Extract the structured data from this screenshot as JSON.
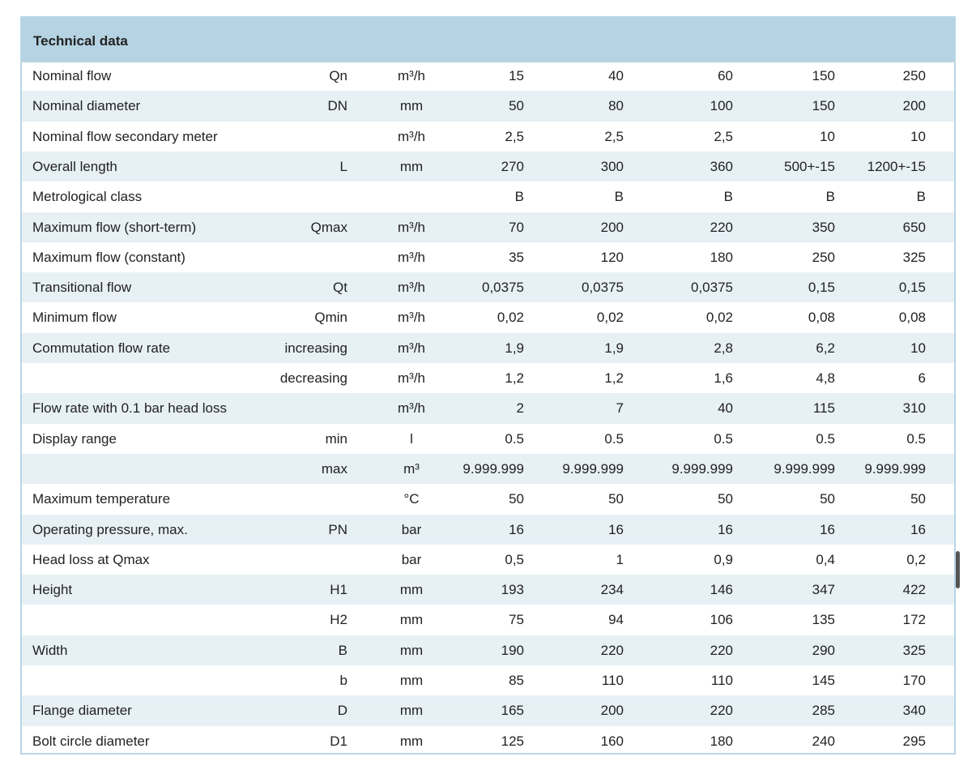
{
  "table": {
    "title": "Technical data",
    "rows": [
      [
        "Nominal flow",
        "Qn",
        "m³/h",
        "15",
        "40",
        "60",
        "150",
        "250"
      ],
      [
        "Nominal diameter",
        "DN",
        "mm",
        "50",
        "80",
        "100",
        "150",
        "200"
      ],
      [
        "Nominal flow secondary meter",
        null,
        "m³/h",
        "2,5",
        "2,5",
        "2,5",
        "10",
        "10"
      ],
      [
        "Overall length",
        "L",
        "mm",
        "270",
        "300",
        "360",
        "500+-15",
        "1200+-15"
      ],
      [
        "Metrological class",
        null,
        null,
        "B",
        "B",
        "B",
        "B",
        "B"
      ],
      [
        "Maximum flow (short-term)",
        "Qmax",
        "m³/h",
        "70",
        "200",
        "220",
        "350",
        "650"
      ],
      [
        "Maximum flow (constant)",
        null,
        "m³/h",
        "35",
        "120",
        "180",
        "250",
        "325"
      ],
      [
        "Transitional flow",
        "Qt",
        "m³/h",
        "0,0375",
        "0,0375",
        "0,0375",
        "0,15",
        "0,15"
      ],
      [
        "Minimum flow",
        "Qmin",
        "m³/h",
        "0,02",
        "0,02",
        "0,02",
        "0,08",
        "0,08"
      ],
      [
        "Commutation flow rate",
        "increasing",
        "m³/h",
        "1,9",
        "1,9",
        "2,8",
        "6,2",
        "10"
      ],
      [
        null,
        "decreasing",
        "m³/h",
        "1,2",
        "1,2",
        "1,6",
        "4,8",
        "6"
      ],
      [
        "Flow rate with 0.1 bar head loss",
        null,
        "m³/h",
        "2",
        "7",
        "40",
        "115",
        "310"
      ],
      [
        "Display range",
        "min",
        "l",
        "0.5",
        "0.5",
        "0.5",
        "0.5",
        "0.5"
      ],
      [
        null,
        "max",
        "m³",
        "9.999.999",
        "9.999.999",
        "9.999.999",
        "9.999.999",
        "9.999.999"
      ],
      [
        "Maximum temperature",
        null,
        "°C",
        "50",
        "50",
        "50",
        "50",
        "50"
      ],
      [
        "Operating pressure, max.",
        "PN",
        "bar",
        "16",
        "16",
        "16",
        "16",
        "16"
      ],
      [
        "Head loss at Qmax",
        null,
        "bar",
        "0,5",
        "1",
        "0,9",
        "0,4",
        "0,2"
      ],
      [
        "Height",
        "H1",
        "mm",
        "193",
        "234",
        "146",
        "347",
        "422"
      ],
      [
        null,
        "H2",
        "mm",
        "75",
        "94",
        "106",
        "135",
        "172"
      ],
      [
        "Width",
        "B",
        "mm",
        "190",
        "220",
        "220",
        "290",
        "325"
      ],
      [
        null,
        "b",
        "mm",
        "85",
        "110",
        "110",
        "145",
        "170"
      ],
      [
        "Flange diameter",
        "D",
        "mm",
        "165",
        "200",
        "220",
        "285",
        "340"
      ],
      [
        "Bolt circle diameter",
        "D1",
        "mm",
        "125",
        "160",
        "180",
        "240",
        "295"
      ]
    ]
  }
}
